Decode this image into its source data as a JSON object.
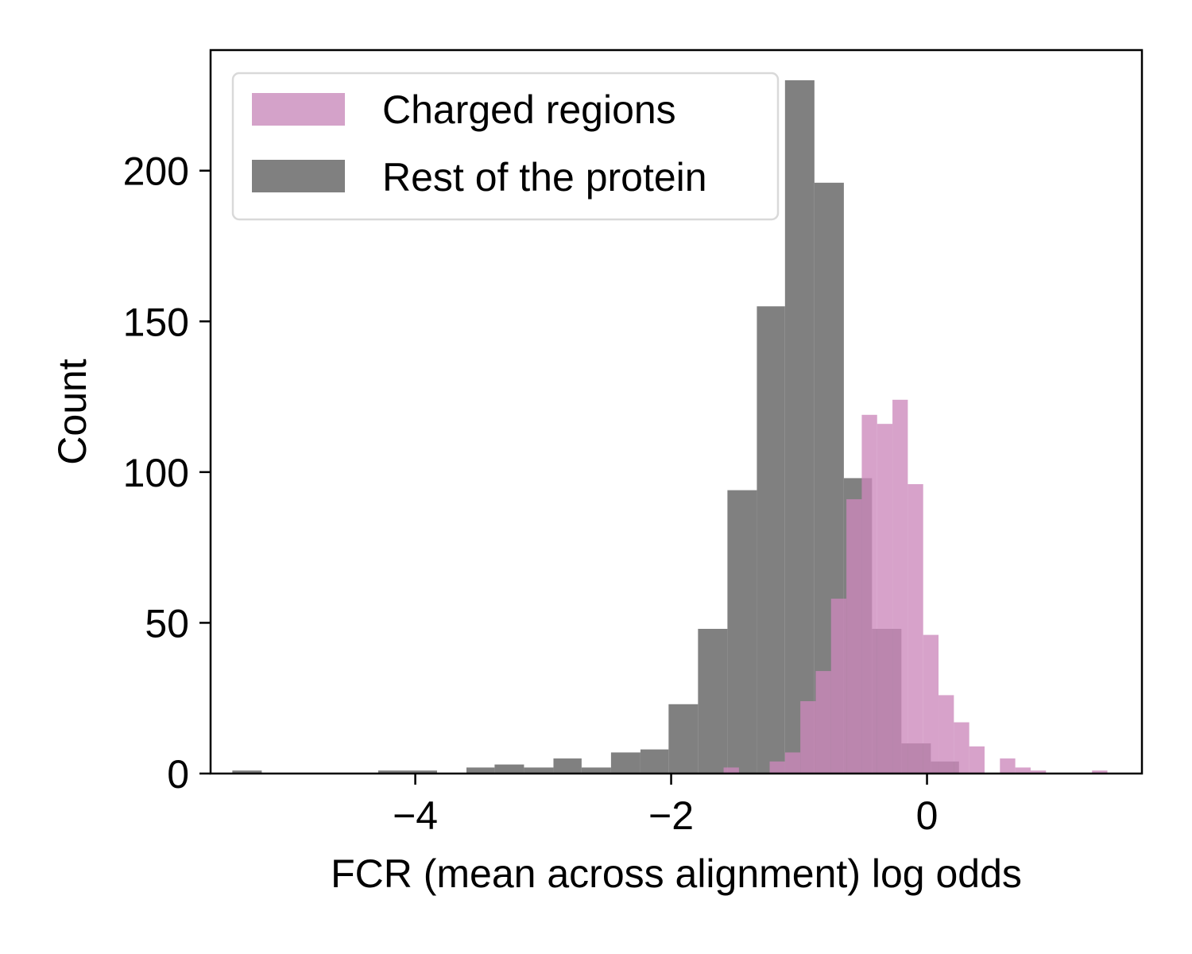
{
  "chart_data": {
    "type": "bar",
    "xlabel": "FCR (mean across alignment) log odds",
    "ylabel": "Count",
    "xlim": [
      -5.6,
      1.68
    ],
    "ylim": [
      0,
      240
    ],
    "xticks": [
      -4,
      -2,
      0
    ],
    "xtick_labels": [
      "−4",
      "−2",
      "0"
    ],
    "yticks": [
      0,
      50,
      100,
      150,
      200
    ],
    "ytick_labels": [
      "0",
      "50",
      "100",
      "150",
      "200"
    ],
    "grid": false,
    "legend_position": "top-left",
    "series": [
      {
        "name": "Rest of the protein",
        "color": "#808080",
        "opacity": 1.0,
        "bins": [
          {
            "x0": -5.43,
            "x1": -5.2,
            "count": 1
          },
          {
            "x0": -4.29,
            "x1": -3.83,
            "count": 1
          },
          {
            "x0": -3.6,
            "x1": -3.38,
            "count": 2
          },
          {
            "x0": -3.38,
            "x1": -3.15,
            "count": 3
          },
          {
            "x0": -3.15,
            "x1": -2.92,
            "count": 2
          },
          {
            "x0": -2.92,
            "x1": -2.7,
            "count": 5
          },
          {
            "x0": -2.7,
            "x1": -2.47,
            "count": 2
          },
          {
            "x0": -2.47,
            "x1": -2.24,
            "count": 7
          },
          {
            "x0": -2.24,
            "x1": -2.02,
            "count": 8
          },
          {
            "x0": -2.02,
            "x1": -1.79,
            "count": 23
          },
          {
            "x0": -1.79,
            "x1": -1.56,
            "count": 48
          },
          {
            "x0": -1.56,
            "x1": -1.33,
            "count": 94
          },
          {
            "x0": -1.33,
            "x1": -1.11,
            "count": 155
          },
          {
            "x0": -1.11,
            "x1": -0.88,
            "count": 230
          },
          {
            "x0": -0.88,
            "x1": -0.65,
            "count": 196
          },
          {
            "x0": -0.65,
            "x1": -0.43,
            "count": 98
          },
          {
            "x0": -0.43,
            "x1": -0.2,
            "count": 48
          },
          {
            "x0": -0.2,
            "x1": 0.03,
            "count": 10
          },
          {
            "x0": 0.03,
            "x1": 0.25,
            "count": 4
          }
        ]
      },
      {
        "name": "Charged regions",
        "color": "#cc88bb",
        "opacity": 0.78,
        "bins": [
          {
            "x0": -1.59,
            "x1": -1.47,
            "count": 2
          },
          {
            "x0": -1.23,
            "x1": -1.11,
            "count": 4
          },
          {
            "x0": -1.11,
            "x1": -0.99,
            "count": 7
          },
          {
            "x0": -0.99,
            "x1": -0.87,
            "count": 24
          },
          {
            "x0": -0.87,
            "x1": -0.75,
            "count": 34
          },
          {
            "x0": -0.75,
            "x1": -0.63,
            "count": 58
          },
          {
            "x0": -0.63,
            "x1": -0.51,
            "count": 91
          },
          {
            "x0": -0.51,
            "x1": -0.39,
            "count": 119
          },
          {
            "x0": -0.39,
            "x1": -0.27,
            "count": 116
          },
          {
            "x0": -0.27,
            "x1": -0.15,
            "count": 124
          },
          {
            "x0": -0.15,
            "x1": -0.03,
            "count": 96
          },
          {
            "x0": -0.03,
            "x1": 0.09,
            "count": 46
          },
          {
            "x0": 0.09,
            "x1": 0.21,
            "count": 26
          },
          {
            "x0": 0.21,
            "x1": 0.33,
            "count": 17
          },
          {
            "x0": 0.33,
            "x1": 0.45,
            "count": 9
          },
          {
            "x0": 0.57,
            "x1": 0.69,
            "count": 5
          },
          {
            "x0": 0.69,
            "x1": 0.81,
            "count": 2
          },
          {
            "x0": 0.81,
            "x1": 0.93,
            "count": 1
          },
          {
            "x0": 1.29,
            "x1": 1.41,
            "count": 1
          }
        ]
      }
    ],
    "legend": [
      {
        "label": "Charged regions",
        "color": "#d4a2c9"
      },
      {
        "label": "Rest of the protein",
        "color": "#808080"
      }
    ]
  }
}
